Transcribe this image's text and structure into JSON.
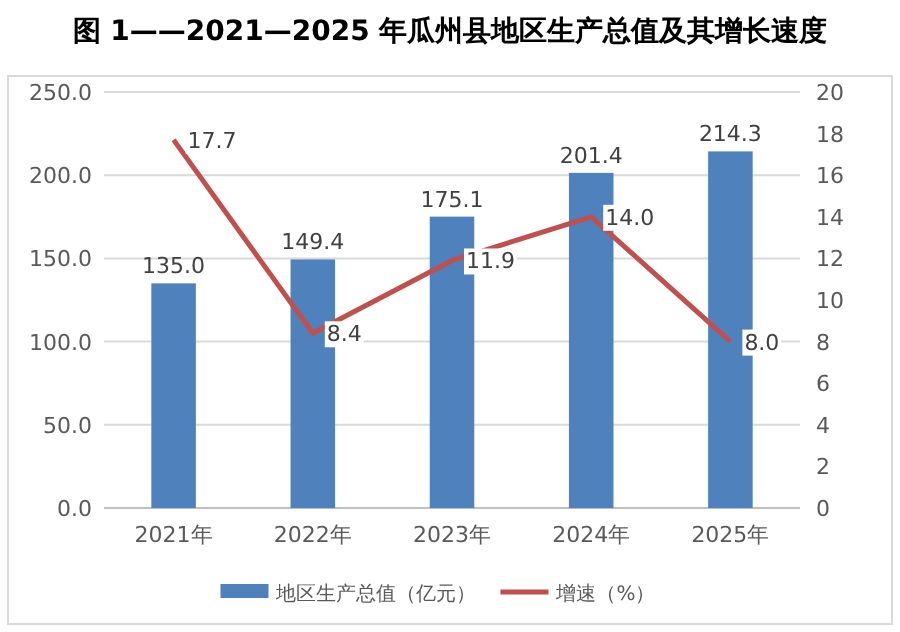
{
  "chart_data": {
    "type": "bar",
    "title": "图 1——2021—2025 年瓜州县地区生产总值及其增长速度",
    "categories": [
      "2021年",
      "2022年",
      "2023年",
      "2024年",
      "2025年"
    ],
    "series": [
      {
        "name": "地区生产总值（亿元）",
        "color": "#4f81bd",
        "values": [
          135.0,
          149.4,
          175.1,
          201.4,
          214.3
        ],
        "value_labels": [
          "135.0",
          "149.4",
          "175.1",
          "201.4",
          "214.3"
        ]
      },
      {
        "name": "增速（%）",
        "type": "line",
        "axis": "y2",
        "color": "#c0504d",
        "values": [
          17.7,
          8.4,
          11.9,
          14.0,
          8.0
        ],
        "value_labels": [
          "17.7",
          "8.4",
          "11.9",
          "14.0",
          "8.0"
        ]
      }
    ],
    "ylim": [
      0,
      250
    ],
    "yticks": [
      {
        "value": 0,
        "label": "0.0"
      },
      {
        "value": 50,
        "label": "50.0"
      },
      {
        "value": 100,
        "label": "100.0"
      },
      {
        "value": 150,
        "label": "150.0"
      },
      {
        "value": 200,
        "label": "200.0"
      },
      {
        "value": 250,
        "label": "250.0"
      }
    ],
    "y2lim": [
      0,
      20
    ],
    "y2ticks": [
      0,
      2,
      4,
      6,
      8,
      10,
      12,
      14,
      16,
      18,
      20
    ],
    "grid": "y",
    "legend": "bottom",
    "marker": "none",
    "line_style": "solid"
  }
}
